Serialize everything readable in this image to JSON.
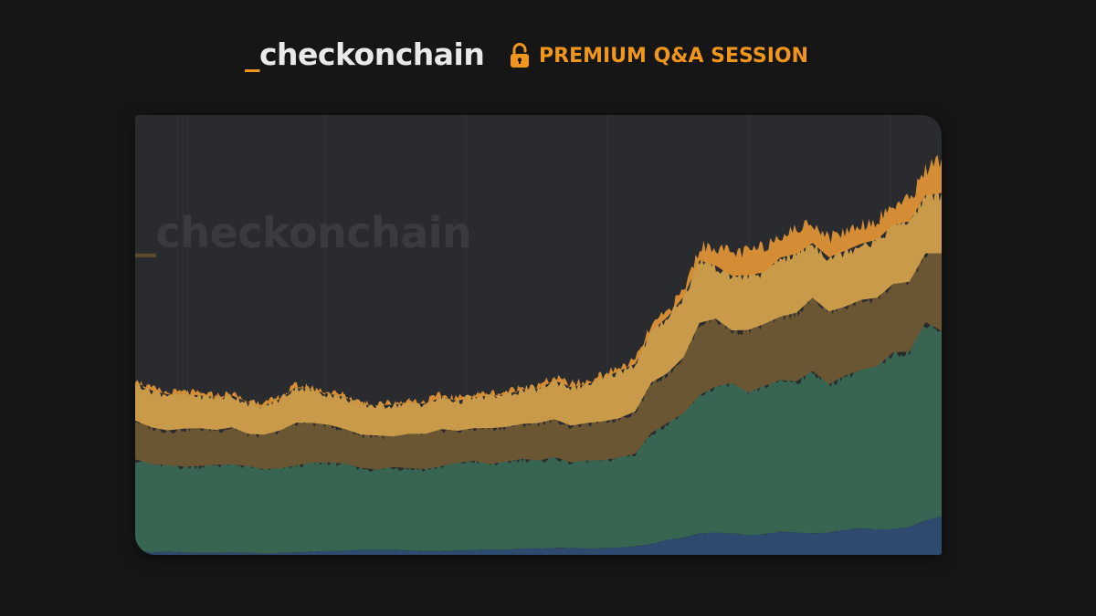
{
  "header": {
    "brand_prefix": "_",
    "brand_name": "checkonchain",
    "premium_label": "PREMIUM Q&A SESSION",
    "lock_icon": "unlocked-padlock-icon",
    "accent_color": "#f0961c"
  },
  "watermark": {
    "prefix": "_",
    "name": "checkonchain"
  },
  "chart_data": {
    "type": "area",
    "stacked": true,
    "title": "",
    "xlabel": "",
    "ylabel": "",
    "grid": false,
    "legend": "none",
    "x": [
      0,
      2,
      4,
      6,
      8,
      10,
      12,
      14,
      16,
      18,
      20,
      22,
      24,
      26,
      28,
      30,
      32,
      34,
      36,
      38,
      40,
      42,
      44,
      46,
      48,
      50,
      52,
      54,
      56,
      58,
      60,
      62,
      64,
      66,
      68,
      70,
      72,
      74,
      76,
      78,
      80,
      82,
      84,
      86,
      88,
      90,
      92,
      94,
      96,
      98,
      100
    ],
    "ylim": [
      0,
      100
    ],
    "series": [
      {
        "color": "#2e4a6e",
        "values": [
          1.2,
          0.6,
          0.8,
          0.6,
          0.5,
          0.5,
          0.6,
          0.5,
          0.3,
          0.5,
          0.6,
          0.8,
          0.9,
          1.0,
          1.2,
          1.2,
          1.2,
          1.0,
          0.9,
          0.9,
          1.0,
          1.2,
          1.3,
          1.2,
          1.5,
          1.5,
          1.6,
          1.6,
          1.5,
          1.6,
          1.7,
          2.0,
          2.5,
          3.5,
          4.0,
          5.0,
          5.2,
          5.0,
          4.6,
          4.8,
          5.4,
          5.2,
          5.0,
          5.2,
          5.8,
          6.2,
          5.9,
          6.0,
          6.5,
          8.0,
          9.0
        ]
      },
      {
        "color": "#376552",
        "values": [
          21,
          20.5,
          20,
          19.9,
          20.1,
          20.4,
          20.4,
          20.1,
          19.6,
          19.6,
          20.2,
          20.6,
          20.5,
          20.2,
          19.0,
          18.6,
          19.2,
          19.1,
          19.0,
          19.7,
          20.4,
          20.6,
          19.8,
          20.4,
          20.8,
          20.4,
          21.1,
          19.9,
          20.4,
          20.4,
          20.9,
          21.5,
          25.8,
          27.1,
          28.9,
          32.1,
          33.9,
          34.9,
          33.1,
          34.4,
          35.2,
          35.1,
          37.7,
          34.4,
          35.8,
          36.7,
          37.9,
          41.0,
          40.7,
          46.0,
          43.0
        ]
      },
      {
        "color": "#6b5634",
        "values": [
          9,
          8.5,
          8.1,
          8.8,
          8.8,
          8.1,
          8.6,
          7.5,
          8.0,
          8.8,
          9.9,
          9.2,
          8.8,
          8.0,
          7.7,
          7.9,
          7.1,
          8.0,
          8.2,
          8.6,
          7.4,
          7.6,
          8.3,
          8.1,
          8.1,
          8.7,
          8.8,
          8.5,
          8.7,
          9.0,
          9.1,
          9.8,
          11.7,
          11.6,
          13.0,
          16.8,
          15.7,
          12.2,
          14.5,
          14.4,
          14.7,
          15.9,
          17.0,
          16.9,
          16.0,
          16.3,
          15.9,
          15.9,
          16.2,
          16.0,
          18.0
        ]
      },
      {
        "color": "#c99a4a",
        "values": [
          9,
          8.6,
          8.4,
          8.1,
          7.6,
          7.6,
          7.4,
          7.3,
          6.8,
          7.3,
          8.4,
          7.6,
          7.2,
          7.4,
          7.0,
          7.0,
          7.4,
          7.2,
          7.0,
          7.4,
          7.0,
          7.2,
          7.6,
          7.5,
          8.0,
          8.0,
          9.0,
          9.0,
          9.0,
          10.0,
          11.0,
          11.0,
          12.0,
          13.0,
          14.0,
          14.5,
          12.3,
          12.7,
          12.7,
          12.0,
          13.7,
          13.7,
          12.7,
          12.6,
          13.0,
          13.0,
          13.5,
          13.8,
          14.0,
          13.5,
          14.0
        ]
      },
      {
        "color": "#d48d35",
        "values": [
          0.3,
          0.3,
          0.3,
          0.3,
          0.3,
          0.3,
          0.3,
          0.3,
          0.3,
          0.3,
          0.3,
          0.4,
          0.4,
          0.4,
          0.4,
          0.4,
          0.4,
          0.5,
          0.5,
          0.5,
          0.5,
          0.5,
          0.5,
          0.5,
          0.6,
          0.6,
          0.6,
          0.6,
          0.6,
          0.7,
          0.7,
          0.8,
          1.0,
          1.2,
          1.5,
          3.0,
          4.5,
          5.2,
          5.5,
          6.0,
          5.5,
          5.5,
          5.0,
          4.5,
          4.5,
          4.5,
          4.5,
          4.5,
          5.0,
          6.0,
          8.0
        ]
      }
    ]
  }
}
